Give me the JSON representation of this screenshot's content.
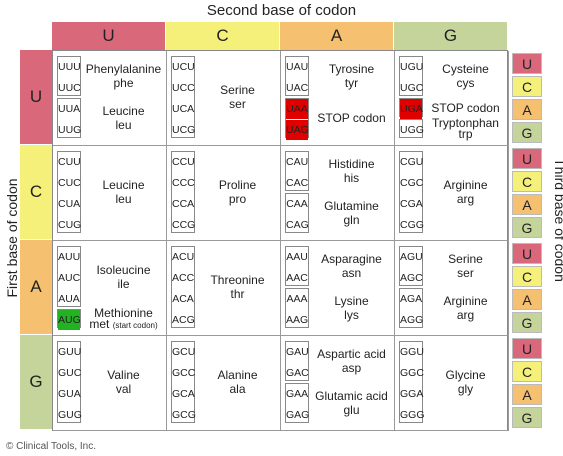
{
  "title_top": "Second base of codon",
  "label_first": "First base of codon",
  "label_third": "Third base of codon",
  "bases": [
    "U",
    "C",
    "A",
    "G"
  ],
  "colors": {
    "U": "#d9687a",
    "C": "#f5f07a",
    "A": "#f5c070",
    "G": "#c5d49a",
    "red": "#e00000",
    "green": "#22b222"
  },
  "copyright": "© Clinical Tools, Inc.",
  "rows": [
    {
      "cells": [
        {
          "groups": [
            {
              "codons": [
                "UUU",
                "UUC"
              ],
              "name": "Phenylalanine",
              "abbr": "phe"
            },
            {
              "codons": [
                "UUA",
                "UUG"
              ],
              "name": "Leucine",
              "abbr": "leu"
            }
          ]
        },
        {
          "groups": [
            {
              "codons": [
                "UCU",
                "UCC",
                "UCA",
                "UCG"
              ],
              "name": "Serine",
              "abbr": "ser"
            }
          ]
        },
        {
          "groups": [
            {
              "codons": [
                "UAU",
                "UAC"
              ],
              "name": "Tyrosine",
              "abbr": "tyr"
            },
            {
              "codons": [
                "UAA",
                "UAG"
              ],
              "name": "STOP codon",
              "abbr": "",
              "highlight": "red"
            }
          ]
        },
        {
          "groups": [
            {
              "codons": [
                "UGU",
                "UGC"
              ],
              "name": "Cysteine",
              "abbr": "cys"
            },
            {
              "codons": [
                "UGA"
              ],
              "name": "STOP codon",
              "abbr": "",
              "highlight": "red",
              "single": true
            },
            {
              "codons": [
                "UGG"
              ],
              "name": "Tryptonphan",
              "abbr": "trp",
              "single": true
            }
          ]
        }
      ]
    },
    {
      "cells": [
        {
          "groups": [
            {
              "codons": [
                "CUU",
                "CUC",
                "CUA",
                "CUG"
              ],
              "name": "Leucine",
              "abbr": "leu"
            }
          ]
        },
        {
          "groups": [
            {
              "codons": [
                "CCU",
                "CCC",
                "CCA",
                "CCG"
              ],
              "name": "Proline",
              "abbr": "pro"
            }
          ]
        },
        {
          "groups": [
            {
              "codons": [
                "CAU",
                "CAC"
              ],
              "name": "Histidine",
              "abbr": "his"
            },
            {
              "codons": [
                "CAA",
                "CAG"
              ],
              "name": "Glutamine",
              "abbr": "gln"
            }
          ]
        },
        {
          "groups": [
            {
              "codons": [
                "CGU",
                "CGC",
                "CGA",
                "CGG"
              ],
              "name": "Arginine",
              "abbr": "arg"
            }
          ]
        }
      ]
    },
    {
      "cells": [
        {
          "groups": [
            {
              "codons": [
                "AUU",
                "AUC",
                "AUA"
              ],
              "name": "Isoleucine",
              "abbr": "ile",
              "three": true
            },
            {
              "codons": [
                "AUG"
              ],
              "name": "Methionine",
              "abbr": "met",
              "note": "(start codon)",
              "highlight": "green",
              "single": true
            }
          ]
        },
        {
          "groups": [
            {
              "codons": [
                "ACU",
                "ACC",
                "ACA",
                "ACG"
              ],
              "name": "Threonine",
              "abbr": "thr"
            }
          ]
        },
        {
          "groups": [
            {
              "codons": [
                "AAU",
                "AAC"
              ],
              "name": "Asparagine",
              "abbr": "asn"
            },
            {
              "codons": [
                "AAA",
                "AAG"
              ],
              "name": "Lysine",
              "abbr": "lys"
            }
          ]
        },
        {
          "groups": [
            {
              "codons": [
                "AGU",
                "AGC"
              ],
              "name": "Serine",
              "abbr": "ser"
            },
            {
              "codons": [
                "AGA",
                "AGG"
              ],
              "name": "Arginine",
              "abbr": "arg"
            }
          ]
        }
      ]
    },
    {
      "cells": [
        {
          "groups": [
            {
              "codons": [
                "GUU",
                "GUC",
                "GUA",
                "GUG"
              ],
              "name": "Valine",
              "abbr": "val"
            }
          ]
        },
        {
          "groups": [
            {
              "codons": [
                "GCU",
                "GCC",
                "GCA",
                "GCG"
              ],
              "name": "Alanine",
              "abbr": "ala"
            }
          ]
        },
        {
          "groups": [
            {
              "codons": [
                "GAU",
                "GAC"
              ],
              "name": "Aspartic acid",
              "abbr": "asp"
            },
            {
              "codons": [
                "GAA",
                "GAG"
              ],
              "name": "Glutamic acid",
              "abbr": "glu"
            }
          ]
        },
        {
          "groups": [
            {
              "codons": [
                "GGU",
                "GGC",
                "GGA",
                "GGG"
              ],
              "name": "Glycine",
              "abbr": "gly"
            }
          ]
        }
      ]
    }
  ]
}
